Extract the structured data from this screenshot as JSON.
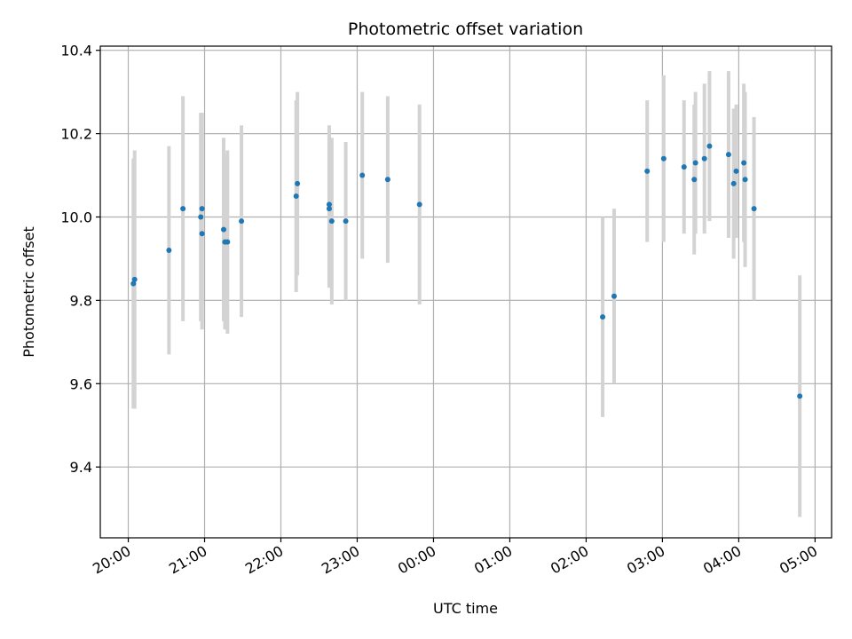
{
  "chart_data": {
    "type": "scatter",
    "title": "Photometric offset variation",
    "xlabel": "UTC time",
    "ylabel": "Photometric offset",
    "x_axis_kind": "time",
    "xlim": [
      "19:38",
      "05:13"
    ],
    "ylim": [
      9.23,
      10.41
    ],
    "xticks": [
      "20:00",
      "21:00",
      "22:00",
      "23:00",
      "00:00",
      "01:00",
      "02:00",
      "03:00",
      "04:00",
      "05:00"
    ],
    "yticks": [
      9.4,
      9.6,
      9.8,
      10.0,
      10.2,
      10.4
    ],
    "ytick_labels": [
      "9.4",
      "9.6",
      "9.8",
      "10.0",
      "10.2",
      "10.4"
    ],
    "grid": true,
    "colors": {
      "points": "#1f77b4",
      "errorbars": "#d3d3d3",
      "grid": "#b0b0b0",
      "axes": "#000000"
    },
    "points": [
      {
        "t": "20:04",
        "y": 9.84,
        "err": 0.3
      },
      {
        "t": "20:05",
        "y": 9.85,
        "err": 0.31
      },
      {
        "t": "20:32",
        "y": 9.92,
        "err": 0.25
      },
      {
        "t": "20:43",
        "y": 10.02,
        "err": 0.27
      },
      {
        "t": "20:57",
        "y": 10.0,
        "err": 0.25
      },
      {
        "t": "20:58",
        "y": 10.02,
        "err": 0.23
      },
      {
        "t": "20:58",
        "y": 9.96,
        "err": 0.23
      },
      {
        "t": "21:15",
        "y": 9.97,
        "err": 0.22
      },
      {
        "t": "21:16",
        "y": 9.94,
        "err": 0.21
      },
      {
        "t": "21:18",
        "y": 9.94,
        "err": 0.22
      },
      {
        "t": "21:29",
        "y": 9.99,
        "err": 0.23
      },
      {
        "t": "22:12",
        "y": 10.05,
        "err": 0.23
      },
      {
        "t": "22:13",
        "y": 10.08,
        "err": 0.22
      },
      {
        "t": "22:38",
        "y": 10.03,
        "err": 0.19
      },
      {
        "t": "22:38",
        "y": 10.02,
        "err": 0.19
      },
      {
        "t": "22:40",
        "y": 9.99,
        "err": 0.2
      },
      {
        "t": "22:51",
        "y": 9.99,
        "err": 0.19
      },
      {
        "t": "23:04",
        "y": 10.1,
        "err": 0.2
      },
      {
        "t": "23:24",
        "y": 10.09,
        "err": 0.2
      },
      {
        "t": "23:49",
        "y": 10.03,
        "err": 0.24
      },
      {
        "t": "02:13",
        "y": 9.76,
        "err": 0.24
      },
      {
        "t": "02:22",
        "y": 9.81,
        "err": 0.21
      },
      {
        "t": "02:48",
        "y": 10.11,
        "err": 0.17
      },
      {
        "t": "03:01",
        "y": 10.14,
        "err": 0.2
      },
      {
        "t": "03:17",
        "y": 10.12,
        "err": 0.16
      },
      {
        "t": "03:25",
        "y": 10.09,
        "err": 0.18
      },
      {
        "t": "03:26",
        "y": 10.13,
        "err": 0.17
      },
      {
        "t": "03:33",
        "y": 10.14,
        "err": 0.18
      },
      {
        "t": "03:37",
        "y": 10.17,
        "err": 0.18
      },
      {
        "t": "03:52",
        "y": 10.15,
        "err": 0.2
      },
      {
        "t": "03:56",
        "y": 10.08,
        "err": 0.18
      },
      {
        "t": "03:58",
        "y": 10.11,
        "err": 0.16
      },
      {
        "t": "04:04",
        "y": 10.13,
        "err": 0.19
      },
      {
        "t": "04:05",
        "y": 10.09,
        "err": 0.21
      },
      {
        "t": "04:12",
        "y": 10.02,
        "err": 0.22
      },
      {
        "t": "04:48",
        "y": 9.57,
        "err": 0.29
      }
    ]
  }
}
